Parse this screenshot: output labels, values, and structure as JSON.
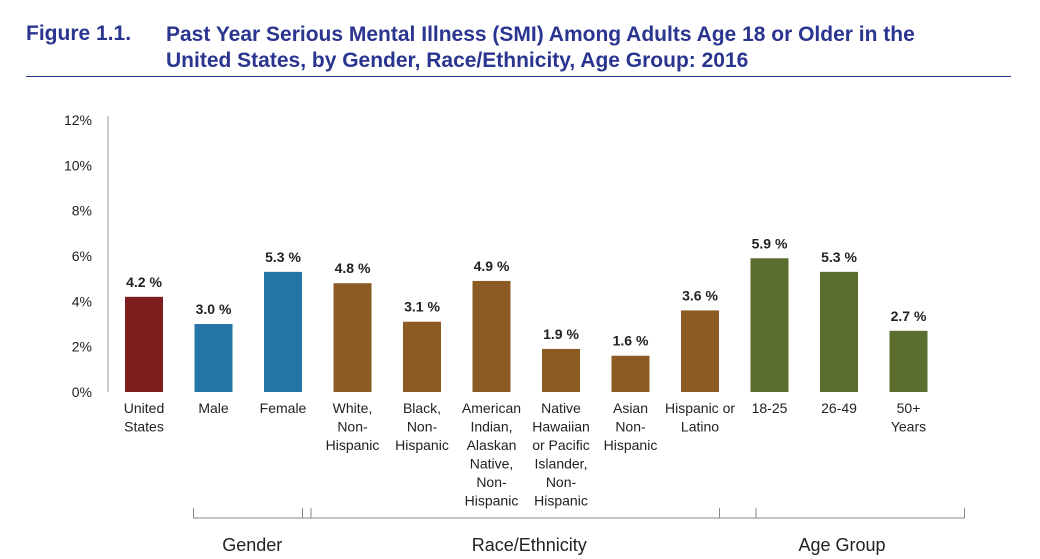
{
  "figure": {
    "number": "Figure 1.1.",
    "title_line1": "Past Year Serious Mental Illness (SMI) Among Adults Age 18 or Older in the",
    "title_line2": "United States, by Gender, Race/Ethnicity, Age Group: 2016"
  },
  "chart_data": {
    "type": "bar",
    "title": "Past Year Serious Mental Illness (SMI) Among Adults Age 18 or Older in the United States, by Gender, Race/Ethnicity, Age Group: 2016",
    "xlabel": "",
    "ylabel": "",
    "ylim": [
      0,
      12
    ],
    "yticks": [
      "0%",
      "2%",
      "4%",
      "6%",
      "8%",
      "10%",
      "12%"
    ],
    "categories": [
      [
        "United",
        "States"
      ],
      [
        "Male"
      ],
      [
        "Female"
      ],
      [
        "White,",
        "Non-",
        "Hispanic"
      ],
      [
        "Black,",
        "Non-",
        "Hispanic"
      ],
      [
        "American",
        "Indian,",
        "Alaskan",
        "Native,",
        "Non-",
        "Hispanic"
      ],
      [
        "Native",
        "Hawaiian",
        "or Pacific",
        "Islander,",
        "Non-",
        "Hispanic"
      ],
      [
        "Asian",
        "Non-",
        "Hispanic"
      ],
      [
        "Hispanic or",
        "Latino"
      ],
      [
        "18-25"
      ],
      [
        "26-49"
      ],
      [
        "50+",
        "Years"
      ]
    ],
    "values": [
      4.2,
      3.0,
      5.3,
      4.8,
      3.1,
      4.9,
      1.9,
      1.6,
      3.6,
      5.9,
      5.3,
      2.7
    ],
    "value_labels": [
      "4.2 %",
      "3.0 %",
      "5.3 %",
      "4.8 %",
      "3.1 %",
      "4.9 %",
      "1.9 %",
      "1.6 %",
      "3.6 %",
      "5.9 %",
      "5.3 %",
      "2.7 %"
    ],
    "group": [
      "overall",
      "gender",
      "gender",
      "race",
      "race",
      "race",
      "race",
      "race",
      "race",
      "age",
      "age",
      "age"
    ],
    "groups": [
      {
        "name": "Gender",
        "from": 1,
        "to": 2
      },
      {
        "name": "Race/Ethnicity",
        "from": 3,
        "to": 8
      },
      {
        "name": "Age Group",
        "from": 9,
        "to": 11
      }
    ],
    "colors": {
      "overall": "#7d1d1d",
      "gender": "#2474a8",
      "race": "#8c5a23",
      "age": "#5b6e2f"
    }
  }
}
